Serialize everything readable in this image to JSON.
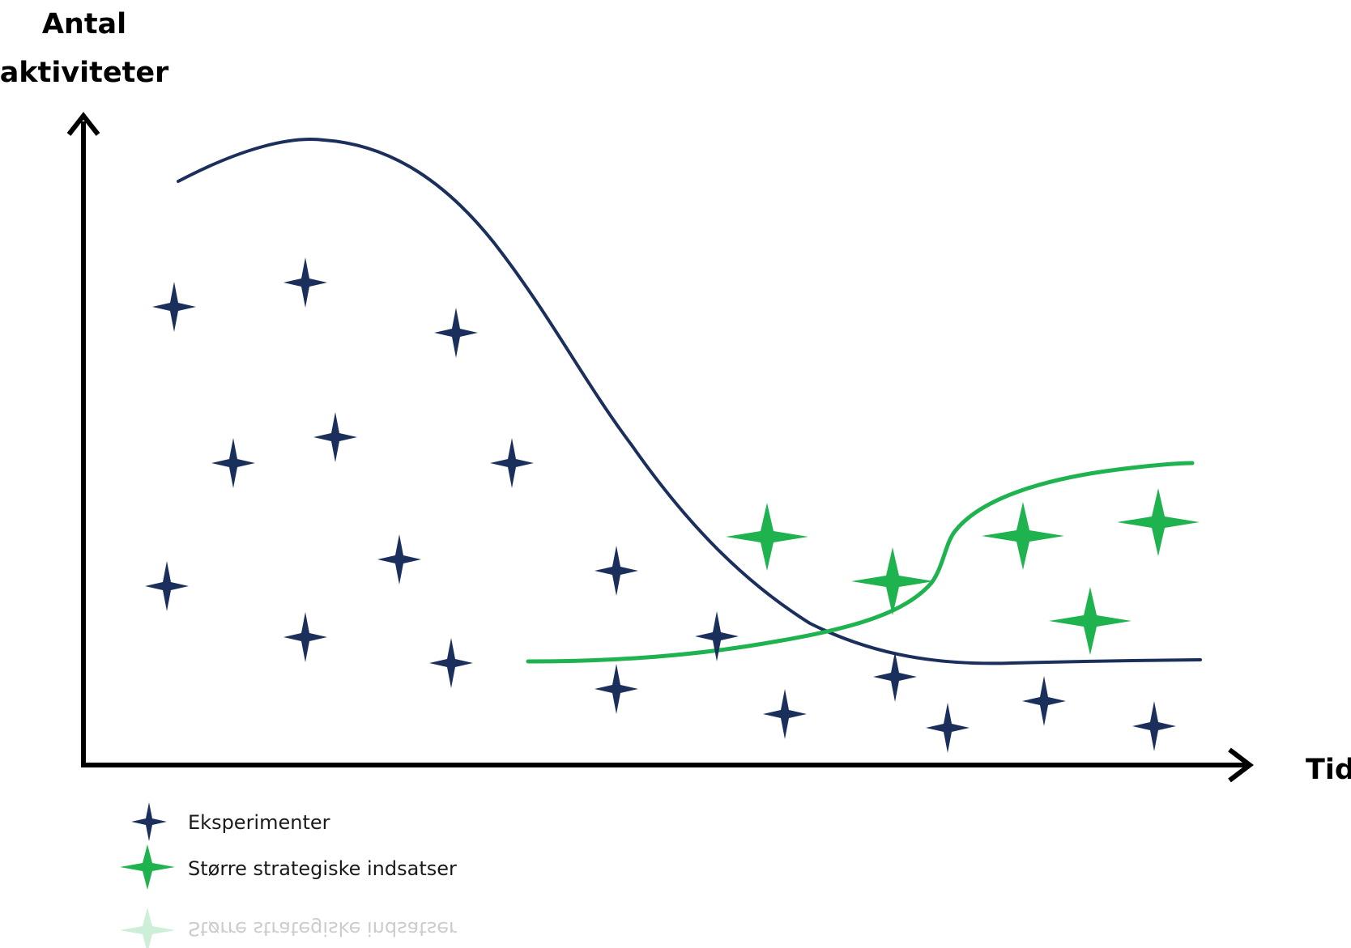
{
  "axes": {
    "y_title_line1": "Antal",
    "y_title_line2": "aktiviteter",
    "x_title": "Tid"
  },
  "legend": {
    "items": [
      {
        "label": "Eksperimenter",
        "icon": "navy-four-point-star-icon",
        "color": "#1b2f5c"
      },
      {
        "label": "Større strategiske indsatser",
        "icon": "green-four-point-star-icon",
        "color": "#1fb34f"
      }
    ]
  },
  "colors": {
    "experiment": "#1b2f5c",
    "strategic": "#1fb34f",
    "axis": "#000000",
    "background": "#ffffff"
  }
}
